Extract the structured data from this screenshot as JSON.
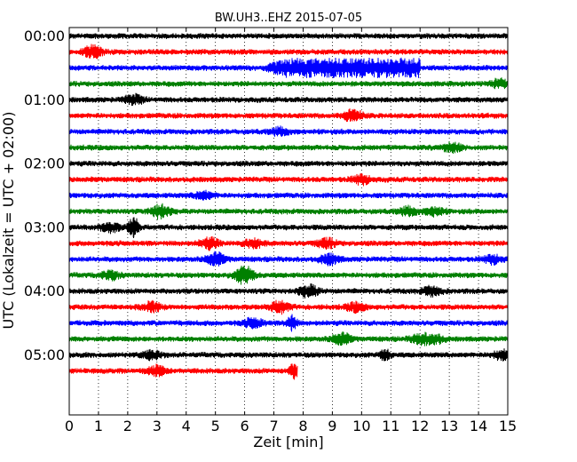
{
  "chart_data": {
    "type": "line",
    "title": "BW.UH3..EHZ 2015-07-05",
    "xlabel": "Zeit  [min]",
    "ylabel": "UTC (Lokalzeit = UTC + 02:00)",
    "xlim": [
      0,
      15
    ],
    "x_ticks": [
      "0",
      "1",
      "2",
      "3",
      "4",
      "5",
      "6",
      "7",
      "8",
      "9",
      "10",
      "11",
      "12",
      "13",
      "14",
      "15"
    ],
    "y_ticks": [
      "00:00",
      "01:00",
      "02:00",
      "03:00",
      "04:00",
      "05:00"
    ],
    "grid": "x dotted",
    "row_minutes": 15,
    "color_cycle": [
      "#000000",
      "#ff0000",
      "#0000ff",
      "#008000"
    ],
    "traces": [
      {
        "start": "00:00",
        "end_min": 15,
        "events": []
      },
      {
        "start": "00:15",
        "end_min": 15,
        "events": [
          {
            "t": 0.8,
            "a": 2.0
          }
        ]
      },
      {
        "start": "00:30",
        "end_min": 15,
        "events": [
          {
            "t": 7.0,
            "a": 2.8,
            "w": 5.0,
            "block": true
          }
        ]
      },
      {
        "start": "00:45",
        "end_min": 15,
        "events": [
          {
            "t": 14.7,
            "a": 1.4
          }
        ]
      },
      {
        "start": "01:00",
        "end_min": 15,
        "events": [
          {
            "t": 2.2,
            "a": 1.6
          }
        ]
      },
      {
        "start": "01:15",
        "end_min": 15,
        "events": [
          {
            "t": 9.7,
            "a": 2.0
          }
        ]
      },
      {
        "start": "01:30",
        "end_min": 15,
        "events": [
          {
            "t": 7.2,
            "a": 1.3
          }
        ]
      },
      {
        "start": "01:45",
        "end_min": 15,
        "events": [
          {
            "t": 13.1,
            "a": 1.5
          }
        ]
      },
      {
        "start": "02:00",
        "end_min": 15,
        "events": []
      },
      {
        "start": "02:15",
        "end_min": 15,
        "events": [
          {
            "t": 10.0,
            "a": 1.5
          }
        ]
      },
      {
        "start": "02:30",
        "end_min": 15,
        "events": [
          {
            "t": 4.6,
            "a": 1.3
          }
        ]
      },
      {
        "start": "02:45",
        "end_min": 15,
        "events": [
          {
            "t": 3.1,
            "a": 2.3
          },
          {
            "t": 11.6,
            "a": 1.5
          },
          {
            "t": 12.5,
            "a": 1.4
          }
        ]
      },
      {
        "start": "03:00",
        "end_min": 15,
        "events": [
          {
            "t": 1.4,
            "a": 1.5
          },
          {
            "t": 2.2,
            "a": 3.5,
            "spike": true
          }
        ]
      },
      {
        "start": "03:15",
        "end_min": 15,
        "events": [
          {
            "t": 4.8,
            "a": 1.8
          },
          {
            "t": 6.3,
            "a": 1.6
          },
          {
            "t": 8.8,
            "a": 1.6
          }
        ]
      },
      {
        "start": "03:30",
        "end_min": 15,
        "events": [
          {
            "t": 5.0,
            "a": 2.2
          },
          {
            "t": 8.9,
            "a": 1.7
          },
          {
            "t": 14.5,
            "a": 1.4
          }
        ]
      },
      {
        "start": "03:45",
        "end_min": 15,
        "events": [
          {
            "t": 1.4,
            "a": 1.4
          },
          {
            "t": 6.0,
            "a": 3.2
          }
        ]
      },
      {
        "start": "04:00",
        "end_min": 15,
        "events": [
          {
            "t": 8.2,
            "a": 2.0
          },
          {
            "t": 12.4,
            "a": 1.6
          }
        ]
      },
      {
        "start": "04:15",
        "end_min": 15,
        "events": [
          {
            "t": 2.8,
            "a": 1.6
          },
          {
            "t": 7.2,
            "a": 2.0
          },
          {
            "t": 9.8,
            "a": 1.4
          }
        ]
      },
      {
        "start": "04:30",
        "end_min": 15,
        "events": [
          {
            "t": 6.3,
            "a": 1.6
          },
          {
            "t": 7.6,
            "a": 2.6,
            "spike": true
          }
        ]
      },
      {
        "start": "04:45",
        "end_min": 15,
        "events": [
          {
            "t": 9.3,
            "a": 2.0
          },
          {
            "t": 12.0,
            "a": 1.6
          },
          {
            "t": 12.5,
            "a": 1.6
          }
        ]
      },
      {
        "start": "05:00",
        "end_min": 15,
        "events": [
          {
            "t": 2.8,
            "a": 1.5
          },
          {
            "t": 10.8,
            "a": 2.0,
            "spike": true
          },
          {
            "t": 14.8,
            "a": 1.5
          }
        ]
      },
      {
        "start": "05:15",
        "end_min": 7.8,
        "events": [
          {
            "t": 3.0,
            "a": 1.6
          },
          {
            "t": 7.7,
            "a": 2.4,
            "spike": true
          }
        ]
      }
    ]
  }
}
